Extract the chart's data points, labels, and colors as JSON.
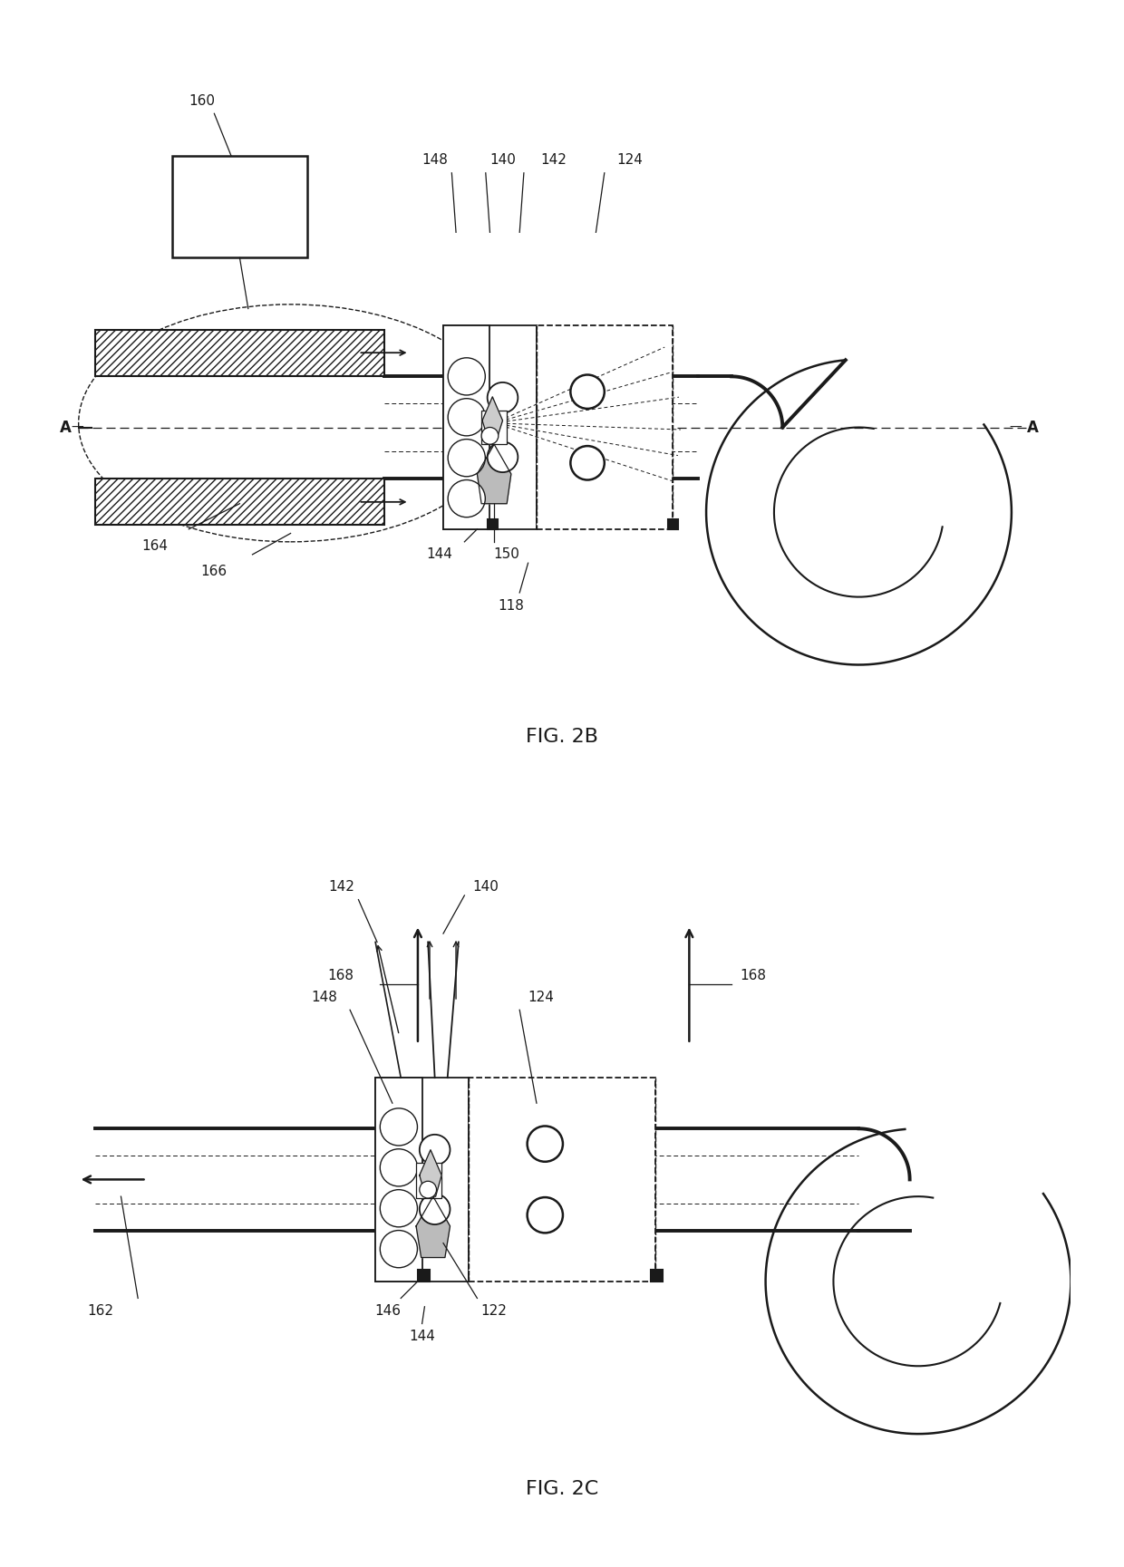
{
  "background_color": "#ffffff",
  "line_color": "#1a1a1a",
  "fig_label_2b": "FIG. 2B",
  "fig_label_2c": "FIG. 2C"
}
